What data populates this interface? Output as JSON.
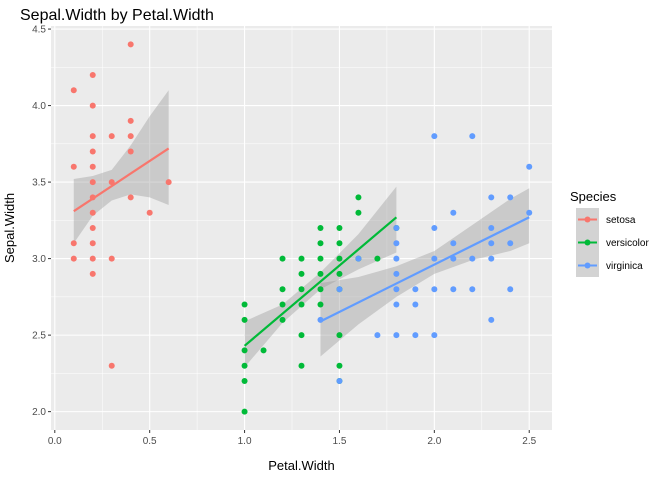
{
  "chart_data": {
    "type": "scatter",
    "title": "Sepal.Width by Petal.Width",
    "xlabel": "Petal.Width",
    "ylabel": "Sepal.Width",
    "xlim": [
      -0.02,
      2.62
    ],
    "ylim": [
      1.88,
      4.52
    ],
    "x_ticks": [
      0.0,
      0.5,
      1.0,
      1.5,
      2.0,
      2.5
    ],
    "x_tick_labels": [
      "0.0",
      "0.5",
      "1.0",
      "1.5",
      "2.0",
      "2.5"
    ],
    "y_ticks": [
      2.0,
      2.5,
      3.0,
      3.5,
      4.0,
      4.5
    ],
    "y_tick_labels": [
      "2.0",
      "2.5",
      "3.0",
      "3.5",
      "4.0",
      "4.5"
    ],
    "grid": true,
    "background": "#ebebeb",
    "legend": {
      "title": "Species",
      "position": "right"
    },
    "series": [
      {
        "name": "setosa",
        "color": "#f8766d",
        "points": [
          [
            0.1,
            4.1
          ],
          [
            0.1,
            3.6
          ],
          [
            0.1,
            3.1
          ],
          [
            0.1,
            3.0
          ],
          [
            0.2,
            4.2
          ],
          [
            0.2,
            4.0
          ],
          [
            0.2,
            3.8
          ],
          [
            0.2,
            3.7
          ],
          [
            0.2,
            3.6
          ],
          [
            0.2,
            3.5
          ],
          [
            0.2,
            3.4
          ],
          [
            0.2,
            3.3
          ],
          [
            0.2,
            3.2
          ],
          [
            0.2,
            3.1
          ],
          [
            0.2,
            3.0
          ],
          [
            0.2,
            2.9
          ],
          [
            0.3,
            3.8
          ],
          [
            0.3,
            3.5
          ],
          [
            0.3,
            3.0
          ],
          [
            0.3,
            2.3
          ],
          [
            0.4,
            4.4
          ],
          [
            0.4,
            3.9
          ],
          [
            0.4,
            3.8
          ],
          [
            0.4,
            3.7
          ],
          [
            0.4,
            3.4
          ],
          [
            0.5,
            3.3
          ],
          [
            0.6,
            3.5
          ]
        ],
        "fit": {
          "x": [
            0.1,
            0.6
          ],
          "y": [
            3.31,
            3.72
          ]
        },
        "band": {
          "x": [
            0.1,
            0.2,
            0.3,
            0.4,
            0.5,
            0.6
          ],
          "lower": [
            3.1,
            3.28,
            3.38,
            3.42,
            3.4,
            3.35
          ],
          "upper": [
            3.52,
            3.54,
            3.58,
            3.74,
            3.93,
            4.1
          ]
        }
      },
      {
        "name": "versicolor",
        "color": "#00ba38",
        "points": [
          [
            1.0,
            2.7
          ],
          [
            1.0,
            2.6
          ],
          [
            1.0,
            2.4
          ],
          [
            1.0,
            2.3
          ],
          [
            1.0,
            2.2
          ],
          [
            1.0,
            2.0
          ],
          [
            1.1,
            2.4
          ],
          [
            1.2,
            3.0
          ],
          [
            1.2,
            2.8
          ],
          [
            1.2,
            2.7
          ],
          [
            1.2,
            2.6
          ],
          [
            1.3,
            3.0
          ],
          [
            1.3,
            2.9
          ],
          [
            1.3,
            2.8
          ],
          [
            1.3,
            2.7
          ],
          [
            1.3,
            2.5
          ],
          [
            1.3,
            2.3
          ],
          [
            1.4,
            3.2
          ],
          [
            1.4,
            3.1
          ],
          [
            1.4,
            3.0
          ],
          [
            1.4,
            2.9
          ],
          [
            1.4,
            2.8
          ],
          [
            1.4,
            2.7
          ],
          [
            1.5,
            3.2
          ],
          [
            1.5,
            3.1
          ],
          [
            1.5,
            3.0
          ],
          [
            1.5,
            2.9
          ],
          [
            1.5,
            2.8
          ],
          [
            1.5,
            2.5
          ],
          [
            1.5,
            2.3
          ],
          [
            1.5,
            2.2
          ],
          [
            1.6,
            3.4
          ],
          [
            1.6,
            3.3
          ],
          [
            1.6,
            3.0
          ],
          [
            1.7,
            3.0
          ],
          [
            1.8,
            3.2
          ]
        ],
        "fit": {
          "x": [
            1.0,
            1.8
          ],
          "y": [
            2.43,
            3.27
          ]
        },
        "band": {
          "x": [
            1.0,
            1.2,
            1.4,
            1.6,
            1.8
          ],
          "lower": [
            2.29,
            2.58,
            2.8,
            2.93,
            3.04
          ],
          "upper": [
            2.59,
            2.7,
            2.91,
            3.16,
            3.47
          ]
        }
      },
      {
        "name": "virginica",
        "color": "#619cff",
        "points": [
          [
            1.4,
            2.6
          ],
          [
            1.5,
            2.8
          ],
          [
            1.5,
            2.2
          ],
          [
            1.6,
            3.0
          ],
          [
            1.7,
            2.5
          ],
          [
            1.8,
            3.2
          ],
          [
            1.8,
            3.1
          ],
          [
            1.8,
            3.0
          ],
          [
            1.8,
            2.9
          ],
          [
            1.8,
            2.8
          ],
          [
            1.8,
            2.7
          ],
          [
            1.8,
            2.5
          ],
          [
            1.9,
            2.8
          ],
          [
            1.9,
            2.7
          ],
          [
            1.9,
            2.5
          ],
          [
            2.0,
            3.8
          ],
          [
            2.0,
            3.2
          ],
          [
            2.0,
            3.0
          ],
          [
            2.0,
            2.8
          ],
          [
            2.0,
            2.5
          ],
          [
            2.1,
            3.3
          ],
          [
            2.1,
            3.1
          ],
          [
            2.1,
            3.0
          ],
          [
            2.1,
            2.8
          ],
          [
            2.2,
            3.8
          ],
          [
            2.2,
            3.0
          ],
          [
            2.2,
            2.8
          ],
          [
            2.3,
            3.4
          ],
          [
            2.3,
            3.2
          ],
          [
            2.3,
            3.1
          ],
          [
            2.3,
            3.0
          ],
          [
            2.3,
            2.6
          ],
          [
            2.4,
            3.4
          ],
          [
            2.4,
            3.1
          ],
          [
            2.4,
            2.8
          ],
          [
            2.5,
            3.6
          ],
          [
            2.5,
            3.3
          ]
        ],
        "fit": {
          "x": [
            1.4,
            2.5
          ],
          "y": [
            2.59,
            3.27
          ]
        },
        "band": {
          "x": [
            1.4,
            1.6,
            1.8,
            2.0,
            2.2,
            2.4,
            2.5
          ],
          "lower": [
            2.36,
            2.57,
            2.75,
            2.9,
            2.99,
            3.05,
            3.1
          ],
          "upper": [
            2.84,
            2.88,
            2.95,
            3.05,
            3.22,
            3.39,
            3.46
          ]
        }
      }
    ]
  }
}
